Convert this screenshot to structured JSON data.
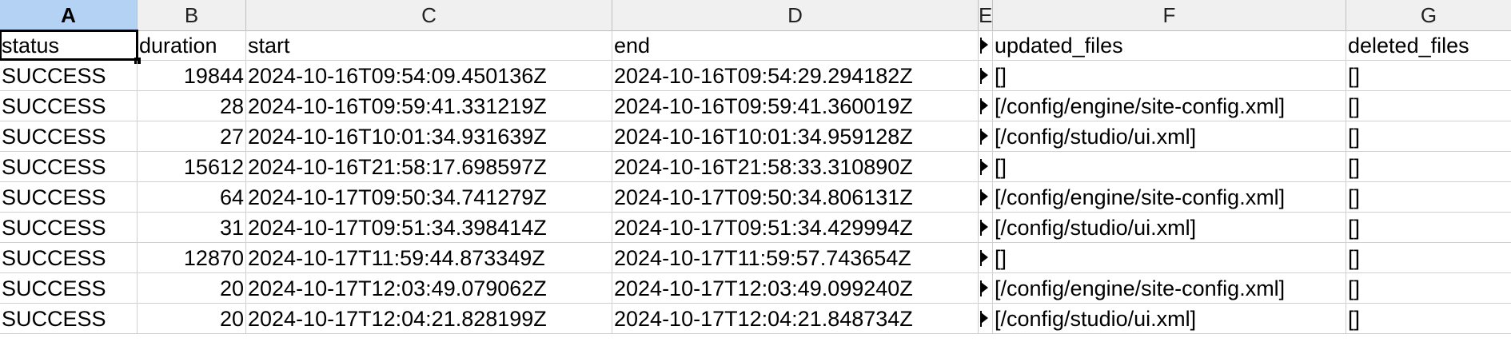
{
  "columns": [
    "A",
    "B",
    "C",
    "D",
    "E",
    "F",
    "G"
  ],
  "header_row": {
    "status": "status",
    "duration": "duration",
    "start": "start",
    "end": "end",
    "updated_files": "updated_files",
    "deleted_files": "deleted_files"
  },
  "rows": [
    {
      "status": "SUCCESS",
      "duration": "19844",
      "start": "2024-10-16T09:54:09.450136Z",
      "end": "2024-10-16T09:54:29.294182Z",
      "updated_files": "[]",
      "deleted_files": "[]"
    },
    {
      "status": "SUCCESS",
      "duration": "28",
      "start": "2024-10-16T09:59:41.331219Z",
      "end": "2024-10-16T09:59:41.360019Z",
      "updated_files": "[/config/engine/site-config.xml]",
      "deleted_files": "[]"
    },
    {
      "status": "SUCCESS",
      "duration": "27",
      "start": "2024-10-16T10:01:34.931639Z",
      "end": "2024-10-16T10:01:34.959128Z",
      "updated_files": "[/config/studio/ui.xml]",
      "deleted_files": "[]"
    },
    {
      "status": "SUCCESS",
      "duration": "15612",
      "start": "2024-10-16T21:58:17.698597Z",
      "end": "2024-10-16T21:58:33.310890Z",
      "updated_files": "[]",
      "deleted_files": "[]"
    },
    {
      "status": "SUCCESS",
      "duration": "64",
      "start": "2024-10-17T09:50:34.741279Z",
      "end": "2024-10-17T09:50:34.806131Z",
      "updated_files": "[/config/engine/site-config.xml]",
      "deleted_files": "[]"
    },
    {
      "status": "SUCCESS",
      "duration": "31",
      "start": "2024-10-17T09:51:34.398414Z",
      "end": "2024-10-17T09:51:34.429994Z",
      "updated_files": "[/config/studio/ui.xml]",
      "deleted_files": "[]"
    },
    {
      "status": "SUCCESS",
      "duration": "12870",
      "start": "2024-10-17T11:59:44.873349Z",
      "end": "2024-10-17T11:59:57.743654Z",
      "updated_files": "[]",
      "deleted_files": "[]"
    },
    {
      "status": "SUCCESS",
      "duration": "20",
      "start": "2024-10-17T12:03:49.079062Z",
      "end": "2024-10-17T12:03:49.099240Z",
      "updated_files": "[/config/engine/site-config.xml]",
      "deleted_files": "[]"
    },
    {
      "status": "SUCCESS",
      "duration": "20",
      "start": "2024-10-17T12:04:21.828199Z",
      "end": "2024-10-17T12:04:21.848734Z",
      "updated_files": "[/config/studio/ui.xml]",
      "deleted_files": "[]"
    }
  ],
  "selection": {
    "active_cell": "A1",
    "selected_column": "A"
  },
  "colors": {
    "header_bg": "#f0f0f0",
    "selected_header_bg": "#b4d2f3",
    "grid": "#d0d0d0"
  }
}
